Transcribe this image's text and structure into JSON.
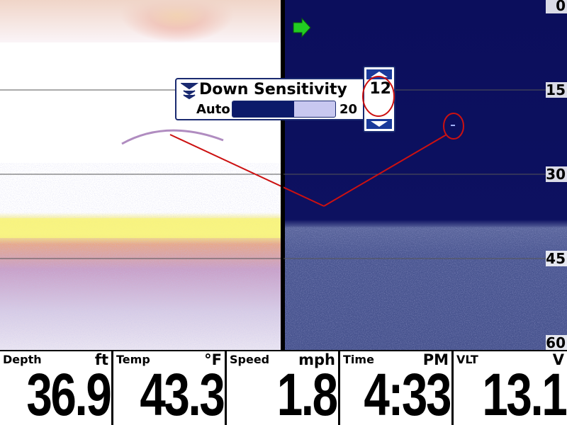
{
  "depth_scale": [
    0,
    15,
    30,
    45,
    60
  ],
  "popup": {
    "title": "Down Sensitivity",
    "value": 12,
    "mode": "Auto",
    "max": 20
  },
  "readouts": [
    {
      "label": "Depth",
      "unit": "ft",
      "value": 36.9
    },
    {
      "label": "Temp",
      "unit": "°F",
      "value": 43.3
    },
    {
      "label": "Speed",
      "unit": "mph",
      "value": 1.8
    },
    {
      "label": "Time",
      "unit": "PM",
      "value": "4:33"
    },
    {
      "label": "VLT",
      "unit": "V",
      "value": 13.1
    }
  ]
}
